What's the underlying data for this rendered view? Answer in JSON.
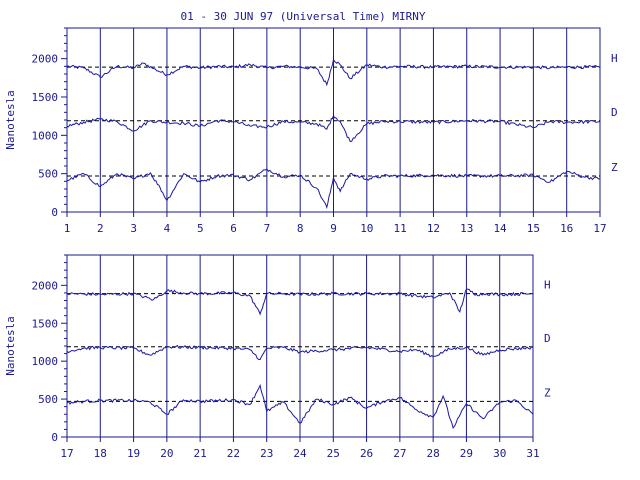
{
  "title": "01 - 30 JUN 97 (Universal Time) MIRNY",
  "chart_data": [
    {
      "type": "line",
      "xlabel": "",
      "ylabel": "Nanotesla",
      "x_ticks": [
        "1",
        "2",
        "3",
        "4",
        "5",
        "6",
        "7",
        "8",
        "9",
        "10",
        "11",
        "12",
        "13",
        "14",
        "15",
        "16",
        "17"
      ],
      "xlim": [
        1,
        17
      ],
      "ylim": [
        0,
        2400
      ],
      "y_ticks": [
        0,
        500,
        1000,
        1500,
        2000
      ],
      "grid": true,
      "series": [
        {
          "name": "H",
          "baseline": 1890,
          "x": [
            1,
            1.5,
            2,
            2.5,
            3,
            3.3,
            3.6,
            4,
            4.5,
            5,
            5.5,
            6,
            6.5,
            7,
            7.5,
            8,
            8.5,
            8.8,
            9,
            9.2,
            9.5,
            10,
            10.5,
            11,
            12,
            13,
            14,
            15,
            15.5,
            16,
            17
          ],
          "values": [
            1900,
            1880,
            1760,
            1900,
            1880,
            1940,
            1870,
            1790,
            1900,
            1880,
            1900,
            1890,
            1920,
            1880,
            1900,
            1890,
            1870,
            1660,
            1990,
            1920,
            1740,
            1920,
            1890,
            1900,
            1890,
            1900,
            1890,
            1890,
            1880,
            1890,
            1890
          ]
        },
        {
          "name": "D",
          "baseline": 1190,
          "x": [
            1,
            1.5,
            2,
            2.5,
            3,
            3.5,
            4,
            4.5,
            5,
            5.5,
            6,
            6.5,
            7,
            7.5,
            8,
            8.5,
            8.8,
            9,
            9.2,
            9.5,
            10,
            10.5,
            11,
            12,
            13,
            14,
            15,
            15.5,
            16,
            17
          ],
          "values": [
            1120,
            1170,
            1210,
            1180,
            1060,
            1190,
            1170,
            1160,
            1120,
            1190,
            1180,
            1120,
            1110,
            1180,
            1170,
            1150,
            1080,
            1260,
            1180,
            920,
            1150,
            1180,
            1180,
            1170,
            1190,
            1180,
            1100,
            1180,
            1170,
            1180
          ]
        },
        {
          "name": "Z",
          "baseline": 470,
          "x": [
            1,
            1.5,
            2,
            2.5,
            3,
            3.5,
            3.8,
            4,
            4.5,
            5,
            5.5,
            6,
            6.5,
            7,
            7.5,
            8,
            8.5,
            8.8,
            9,
            9.2,
            9.5,
            10,
            10.5,
            11,
            12,
            13,
            14,
            15,
            15.5,
            16,
            16.5,
            17
          ],
          "values": [
            410,
            500,
            330,
            500,
            430,
            510,
            310,
            150,
            500,
            390,
            470,
            480,
            420,
            560,
            460,
            480,
            310,
            60,
            450,
            270,
            500,
            430,
            470,
            470,
            480,
            470,
            470,
            480,
            390,
            530,
            460,
            430
          ]
        }
      ]
    },
    {
      "type": "line",
      "xlabel": "",
      "ylabel": "Nanotesla",
      "x_ticks": [
        "17",
        "18",
        "19",
        "20",
        "21",
        "22",
        "23",
        "24",
        "25",
        "26",
        "27",
        "28",
        "29",
        "30",
        "31"
      ],
      "xlim": [
        17,
        31
      ],
      "ylim": [
        0,
        2400
      ],
      "y_ticks": [
        0,
        500,
        1000,
        1500,
        2000
      ],
      "grid": true,
      "series": [
        {
          "name": "H",
          "baseline": 1890,
          "x": [
            17,
            18,
            19,
            19.6,
            20,
            20.5,
            21,
            22,
            22.5,
            22.8,
            23,
            23.5,
            24,
            25,
            26,
            27,
            27.5,
            28,
            28.5,
            28.8,
            29,
            29.3,
            29.6,
            30,
            31
          ],
          "values": [
            1890,
            1880,
            1890,
            1810,
            1930,
            1900,
            1890,
            1900,
            1860,
            1620,
            1890,
            1890,
            1880,
            1890,
            1890,
            1890,
            1860,
            1840,
            1900,
            1650,
            1950,
            1880,
            1890,
            1880,
            1890
          ]
        },
        {
          "name": "D",
          "baseline": 1190,
          "x": [
            17,
            17.5,
            18,
            19,
            19.5,
            20,
            21,
            22,
            22.5,
            22.8,
            23,
            23.5,
            24,
            25,
            26,
            27,
            27.5,
            28,
            28.5,
            29,
            29.5,
            30,
            31
          ],
          "values": [
            1130,
            1170,
            1180,
            1170,
            1080,
            1190,
            1180,
            1170,
            1150,
            1020,
            1170,
            1180,
            1120,
            1150,
            1180,
            1130,
            1150,
            1060,
            1160,
            1180,
            1080,
            1150,
            1180
          ]
        },
        {
          "name": "Z",
          "baseline": 470,
          "x": [
            17,
            17.5,
            18,
            19,
            19.5,
            20,
            20.5,
            21,
            22,
            22.5,
            22.8,
            23,
            23.5,
            24,
            24.5,
            25,
            25.5,
            26,
            26.5,
            27,
            27.5,
            28,
            28.3,
            28.6,
            29,
            29.5,
            30,
            30.5,
            31
          ],
          "values": [
            450,
            470,
            480,
            480,
            460,
            300,
            490,
            470,
            490,
            430,
            680,
            340,
            460,
            180,
            500,
            430,
            520,
            380,
            470,
            520,
            360,
            260,
            540,
            120,
            440,
            240,
            460,
            480,
            300
          ]
        }
      ]
    }
  ]
}
